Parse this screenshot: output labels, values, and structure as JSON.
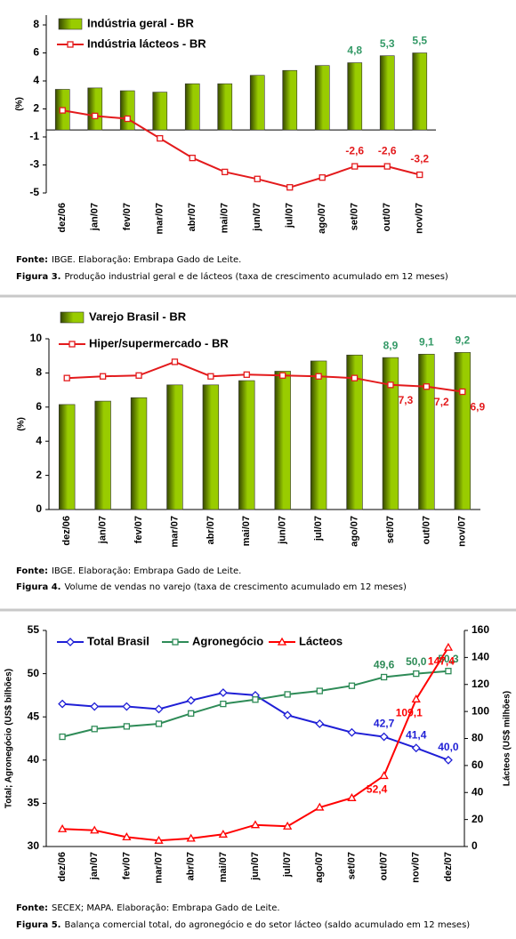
{
  "chart_data": [
    {
      "type": "bar",
      "y_label": "(%)",
      "categories": [
        "dez/06",
        "jan/07",
        "fev/07",
        "mar/07",
        "abr/07",
        "mai/07",
        "jun/07",
        "jul/07",
        "ago/07",
        "set/07",
        "out/07",
        "nov/07"
      ],
      "ylim": [
        -4.5,
        8.2
      ],
      "yticks": [
        {
          "value": -4.5,
          "label": "-5"
        },
        {
          "value": -2.5,
          "label": "-3"
        },
        {
          "value": -0.5,
          "label": "-1"
        },
        {
          "value": 1.5,
          "label": "2"
        },
        {
          "value": 3.5,
          "label": "4"
        },
        {
          "value": 5.5,
          "label": "6"
        },
        {
          "value": 7.5,
          "label": "8"
        }
      ],
      "legend": "top-left",
      "series": [
        {
          "name": "Indústria geral - BR",
          "type": "bar",
          "color": "#99cc00",
          "values": [
            2.9,
            3.0,
            2.8,
            2.7,
            3.3,
            3.3,
            3.9,
            4.25,
            4.6,
            4.8,
            5.3,
            5.5
          ],
          "value_labels": [
            null,
            null,
            null,
            null,
            null,
            null,
            null,
            null,
            null,
            "4,8",
            "5,3",
            "5,5"
          ]
        },
        {
          "name": "Indústria lácteos - BR",
          "type": "line",
          "marker": "square",
          "color": "#e31a1c",
          "values": [
            1.4,
            1.0,
            0.8,
            -0.6,
            -2.0,
            -3.0,
            -3.5,
            -4.1,
            -3.4,
            -2.6,
            -2.6,
            -3.2
          ],
          "value_labels": [
            null,
            null,
            null,
            null,
            null,
            null,
            null,
            null,
            null,
            "-2,6",
            "-2,6",
            "-3,2"
          ]
        }
      ],
      "source_label": "Fonte:",
      "source": "IBGE. Elaboração: Embrapa Gado de Leite.",
      "figure_label": "Figura 3.",
      "caption": "Produção industrial geral e de lácteos (taxa de crescimento acumulado em 12 meses)"
    },
    {
      "type": "bar",
      "y_label": "(%)",
      "categories": [
        "dez/06",
        "jan/07",
        "fev/07",
        "mar/07",
        "abr/07",
        "mai/07",
        "jun/07",
        "jul/07",
        "ago/07",
        "set/07",
        "out/07",
        "nov/07"
      ],
      "ylim": [
        0,
        10
      ],
      "yticks": [
        0,
        2,
        4,
        6,
        8,
        10
      ],
      "legend": "top-left",
      "series": [
        {
          "name": "Varejo Brasil - BR",
          "type": "bar",
          "color": "#99cc00",
          "values": [
            6.15,
            6.35,
            6.55,
            7.3,
            7.3,
            7.55,
            8.1,
            8.7,
            9.05,
            8.9,
            9.1,
            9.2
          ],
          "value_labels": [
            null,
            null,
            null,
            null,
            null,
            null,
            null,
            null,
            null,
            "8,9",
            "9,1",
            "9,2"
          ]
        },
        {
          "name": "Hiper/supermercado - BR",
          "type": "line",
          "marker": "square",
          "color": "#e31a1c",
          "values": [
            7.7,
            7.8,
            7.85,
            8.65,
            7.8,
            7.9,
            7.85,
            7.8,
            7.7,
            7.3,
            7.2,
            6.9
          ],
          "value_labels": [
            null,
            null,
            null,
            null,
            null,
            null,
            null,
            null,
            null,
            "7,3",
            "7,2",
            "6,9"
          ]
        }
      ],
      "source_label": "Fonte:",
      "source": "IBGE. Elaboração: Embrapa Gado de Leite.",
      "figure_label": "Figura 4.",
      "caption": "Volume de vendas no varejo (taxa de crescimento acumulado em 12 meses)"
    },
    {
      "type": "line",
      "y_label": "Total; Agronegócio (US$ bilhões)",
      "y2_label": "Lácteos (US$ milhões)",
      "categories": [
        "dez/06",
        "jan/07",
        "fev/07",
        "mar/07",
        "abr/07",
        "mai/07",
        "jun/07",
        "jul/07",
        "ago/07",
        "set/07",
        "out/07",
        "nov/07",
        "dez/07"
      ],
      "ylim": [
        30,
        55
      ],
      "yticks": [
        30,
        35,
        40,
        45,
        50,
        55
      ],
      "y2lim": [
        0,
        160
      ],
      "y2ticks": [
        0,
        20,
        40,
        60,
        80,
        100,
        120,
        140,
        160
      ],
      "legend": "top",
      "series": [
        {
          "name": "Total Brasil",
          "type": "line",
          "marker": "diamond",
          "color": "#1f1fd6",
          "values": [
            46.5,
            46.2,
            46.2,
            45.9,
            46.9,
            47.8,
            47.5,
            45.2,
            44.2,
            43.2,
            42.7,
            41.4,
            40.0
          ],
          "value_labels": [
            null,
            null,
            null,
            null,
            null,
            null,
            null,
            null,
            null,
            null,
            "42,7",
            "41,4",
            "40,0"
          ]
        },
        {
          "name": "Agronegócio",
          "type": "line",
          "marker": "square",
          "color": "#2e8b57",
          "values": [
            42.7,
            43.6,
            43.9,
            44.2,
            45.4,
            46.5,
            47.0,
            47.6,
            48.0,
            48.6,
            49.6,
            50.0,
            50.3
          ],
          "value_labels": [
            null,
            null,
            null,
            null,
            null,
            null,
            null,
            null,
            null,
            null,
            "49,6",
            "50,0",
            "50,3"
          ]
        },
        {
          "name": "Lácteos",
          "type": "line",
          "marker": "triangle",
          "color": "#ff0000",
          "axis": "y2",
          "values": [
            13,
            12,
            7,
            4.5,
            6,
            9,
            16,
            15,
            29,
            36,
            52.4,
            109.1,
            147.4
          ],
          "value_labels": [
            null,
            null,
            null,
            null,
            null,
            null,
            null,
            null,
            null,
            null,
            "52,4",
            "109,1",
            "147,4"
          ]
        }
      ],
      "source_label": "Fonte:",
      "source": "SECEX; MAPA. Elaboração: Embrapa Gado de Leite.",
      "figure_label": "Figura 5.",
      "caption": "Balança comercial total, do agronegócio e do setor lácteo (saldo acumulado em 12 meses)"
    }
  ]
}
